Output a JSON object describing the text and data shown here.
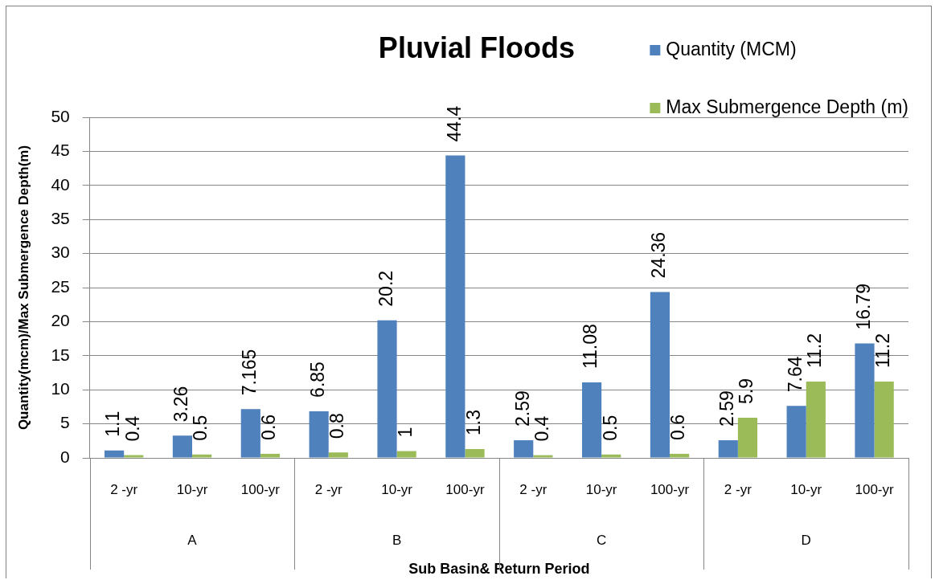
{
  "chart_data": {
    "type": "bar",
    "title": "Pluvial Floods",
    "xlabel": "Sub Basin& Return Period",
    "ylabel": "Quantity(mcm)/Max Submergence Depth(m)",
    "categories": [
      "2 -yr",
      "10-yr",
      "100-yr",
      "2 -yr",
      "10-yr",
      "100-yr",
      "2 -yr",
      "10-yr",
      "100-yr",
      "2 -yr",
      "10-yr",
      "100-yr"
    ],
    "annotations": [
      "A",
      "B",
      "C",
      "D"
    ],
    "series": [
      {
        "name": "Quantity (MCM)",
        "color": "#4f81bd",
        "values": [
          1.1,
          3.26,
          7.165,
          6.85,
          20.2,
          44.4,
          2.59,
          11.08,
          24.36,
          2.59,
          7.64,
          16.79
        ]
      },
      {
        "name": "Max Submergence Depth (m)",
        "color": "#9bbb59",
        "values": [
          0.4,
          0.5,
          0.6,
          0.8,
          1,
          1.3,
          0.4,
          0.5,
          0.6,
          5.9,
          11.2,
          11.2
        ]
      }
    ],
    "ylim": [
      0,
      50
    ],
    "yticks": [
      0,
      5,
      10,
      15,
      20,
      25,
      30,
      35,
      40,
      45,
      50
    ],
    "grid": "y",
    "legend": "top right",
    "data_labels": true
  }
}
